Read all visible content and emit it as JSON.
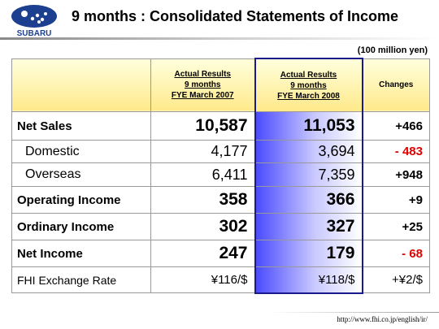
{
  "header": {
    "logo": "SUBARU",
    "title": "9 months : Consolidated Statements of Income"
  },
  "unit": "(100 million yen)",
  "table": {
    "columns": [
      [
        "Actual Results",
        "9 months",
        "FYE March 2007"
      ],
      [
        "Actual Results",
        "9 months",
        "FYE March 2008"
      ],
      [
        "Changes"
      ]
    ],
    "rows": [
      [
        "Net Sales",
        "10,587",
        "11,053",
        "+466"
      ],
      [
        "Domestic",
        "4,177",
        "3,694",
        "- 483"
      ],
      [
        "Overseas",
        "6,411",
        "7,359",
        "+948"
      ],
      [
        "Operating Income",
        "358",
        "366",
        "+9"
      ],
      [
        "Ordinary Income",
        "302",
        "327",
        "+25"
      ],
      [
        "Net Income",
        "247",
        "179",
        "- 68"
      ],
      [
        "FHI Exchange Rate",
        "¥116/$",
        "¥118/$",
        "+¥2/$"
      ]
    ]
  },
  "footer": "http://www.fhi.co.jp/english/ir/"
}
